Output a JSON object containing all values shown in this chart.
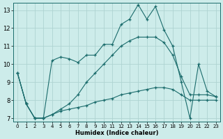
{
  "xlabel": "Humidex (Indice chaleur)",
  "bg_color": "#cdecea",
  "line_color": "#1a6b6b",
  "marker": "+",
  "grid_color": "#aed4d2",
  "xlim": [
    -0.5,
    23.5
  ],
  "ylim": [
    6.8,
    13.4
  ],
  "yticks": [
    7,
    8,
    9,
    10,
    11,
    12,
    13
  ],
  "xticks": [
    0,
    1,
    2,
    3,
    4,
    5,
    6,
    7,
    8,
    9,
    10,
    11,
    12,
    13,
    14,
    15,
    16,
    17,
    18,
    19,
    20,
    21,
    22,
    23
  ],
  "series": [
    [
      9.5,
      7.8,
      7.0,
      7.0,
      10.2,
      10.4,
      10.3,
      10.1,
      10.5,
      10.5,
      11.1,
      11.1,
      12.2,
      12.5,
      13.3,
      12.5,
      13.2,
      11.9,
      11.0,
      9.0,
      7.0,
      10.0,
      8.5,
      8.2
    ],
    [
      9.5,
      7.8,
      7.0,
      7.0,
      7.2,
      7.5,
      7.8,
      8.3,
      9.0,
      9.5,
      10.0,
      10.5,
      11.0,
      11.3,
      11.5,
      11.5,
      11.5,
      11.2,
      10.5,
      9.3,
      8.3,
      8.3,
      8.3,
      8.2
    ],
    [
      9.5,
      7.8,
      7.0,
      7.0,
      7.2,
      7.4,
      7.5,
      7.6,
      7.7,
      7.9,
      8.0,
      8.1,
      8.3,
      8.4,
      8.5,
      8.6,
      8.7,
      8.7,
      8.6,
      8.3,
      8.0,
      8.0,
      8.0,
      8.0
    ]
  ]
}
